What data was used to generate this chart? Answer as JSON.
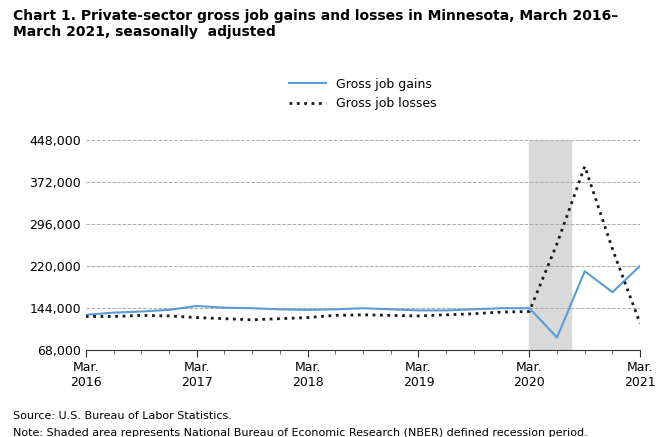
{
  "title": "Chart 1. Private-sector gross job gains and losses in Minnesota, March 2016–\nMarch 2021, seasonally  adjusted",
  "source": "Source: U.S. Bureau of Labor Statistics.",
  "note": "Note: Shaded area represents National Bureau of Economic Research (NBER) defined recession period.",
  "legend_gains": "Gross job gains",
  "legend_losses": "Gross job losses",
  "gains_color": "#5b9bd5",
  "losses_color": "#1a1a1a",
  "background_color": "#ffffff",
  "grid_color": "#aaaaaa",
  "shaded_color": "#d9d9d9",
  "ylim": [
    68000,
    448000
  ],
  "yticks": [
    68000,
    144000,
    220000,
    296000,
    372000,
    448000
  ],
  "ytick_labels": [
    "68,000",
    "144,000",
    "220,000",
    "296,000",
    "372,000",
    "448,000"
  ],
  "recession_start": 16.0,
  "recession_end": 17.5,
  "n_quarters": 21,
  "x_tick_positions": [
    0,
    4,
    8,
    12,
    16,
    20
  ],
  "x_tick_labels": [
    "Mar.\n2016",
    "Mar.\n2017",
    "Mar.\n2018",
    "Mar.\n2019",
    "Mar.\n2020",
    "Mar.\n2021"
  ],
  "gains": [
    131000,
    135000,
    137000,
    140000,
    147000,
    144000,
    143000,
    141000,
    140000,
    141000,
    143000,
    141000,
    139000,
    139000,
    141000,
    143000,
    143000,
    90000,
    210000,
    172000,
    220000
  ],
  "losses": [
    128000,
    128000,
    130000,
    129000,
    126000,
    124000,
    122000,
    124000,
    126000,
    130000,
    131000,
    130000,
    129000,
    131000,
    133000,
    136000,
    137000,
    260000,
    400000,
    250000,
    115000
  ]
}
